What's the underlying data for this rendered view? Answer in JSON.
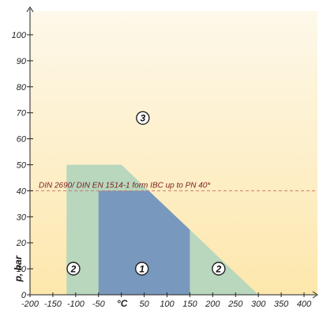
{
  "chart_data": {
    "type": "area",
    "title": "",
    "xlabel": "°C",
    "ylabel": "p, bar",
    "xlim": [
      -200,
      400
    ],
    "ylim": [
      0,
      100
    ],
    "x_ticks": [
      -200,
      -150,
      -100,
      -50,
      0,
      50,
      100,
      150,
      200,
      250,
      300,
      350,
      400
    ],
    "y_ticks": [
      0,
      10,
      20,
      30,
      40,
      50,
      60,
      70,
      80,
      90,
      100
    ],
    "grid": false,
    "colors": {
      "background_top": "#fdf8ea",
      "background_bottom": "#fde7ac",
      "region_1": "#7898bd",
      "region_2": "#b8d7bd",
      "reference_line": "#c97a70",
      "axis": "#222222"
    },
    "regions": [
      {
        "label": "2",
        "points": [
          [
            -120,
            0
          ],
          [
            -120,
            50
          ],
          [
            0,
            50
          ],
          [
            60,
            40
          ],
          [
            300,
            0
          ]
        ],
        "label_positions": [
          [
            -105,
            0.5
          ],
          [
            213,
            0.5
          ]
        ]
      },
      {
        "label": "1",
        "points": [
          [
            -50,
            0
          ],
          [
            -50,
            40
          ],
          [
            60,
            40
          ],
          [
            150,
            25
          ],
          [
            150,
            0
          ]
        ],
        "label_positions": [
          [
            45,
            0.5
          ]
        ]
      },
      {
        "label": "3",
        "points": [],
        "label_positions": [
          [
            47,
            68
          ]
        ]
      }
    ],
    "reference_lines": [
      {
        "y": 40,
        "label": "DIN 2690/ DIN EN 1514-1 form IBC up to PN 40*"
      }
    ]
  }
}
